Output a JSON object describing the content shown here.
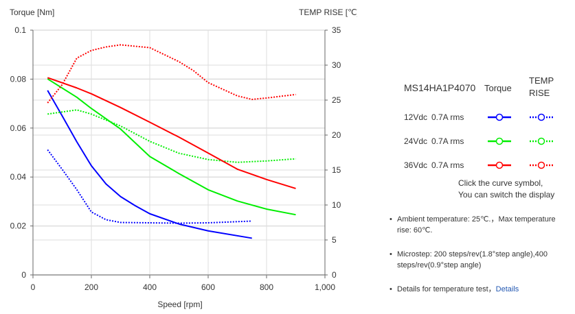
{
  "chart_data": {
    "type": "line",
    "xlabel": "Speed [rpm]",
    "ylabel": "Torque  [Nm]",
    "y2label": "TEMP RISE [℃]",
    "xlim": [
      0,
      1000
    ],
    "ylim": [
      0,
      0.1
    ],
    "y2lim": [
      0,
      35
    ],
    "xticks": [
      "0",
      "200",
      "400",
      "600",
      "800",
      "1,000"
    ],
    "yticks": [
      "0",
      "0.02",
      "0.04",
      "0.06",
      "0.08",
      "0.1"
    ],
    "y2ticks": [
      "0",
      "5",
      "10",
      "15",
      "20",
      "25",
      "30",
      "35"
    ],
    "grid": true,
    "series": [
      {
        "axis": "left",
        "style": "solid",
        "color": "#0000ff",
        "x": [
          50,
          100,
          150,
          200,
          250,
          300,
          350,
          400,
          500,
          600,
          750
        ],
        "y": [
          0.0754,
          0.065,
          0.0544,
          0.0446,
          0.0372,
          0.032,
          0.0283,
          0.025,
          0.0208,
          0.018,
          0.015
        ]
      },
      {
        "axis": "right",
        "style": "dotted",
        "color": "#0000ff",
        "x": [
          50,
          100,
          150,
          200,
          250,
          300,
          400,
          500,
          600,
          750
        ],
        "y": [
          17.9,
          15.1,
          12.2,
          9.0,
          7.9,
          7.5,
          7.45,
          7.4,
          7.45,
          7.7
        ]
      },
      {
        "axis": "left",
        "style": "solid",
        "color": "#00ee00",
        "x": [
          50,
          150,
          200,
          300,
          400,
          500,
          600,
          700,
          800,
          900
        ],
        "y": [
          0.0801,
          0.0726,
          0.068,
          0.0596,
          0.0484,
          0.0414,
          0.0348,
          0.0302,
          0.0269,
          0.0246
        ]
      },
      {
        "axis": "right",
        "style": "dotted",
        "color": "#00ee00",
        "x": [
          50,
          150,
          200,
          300,
          400,
          500,
          600,
          700,
          800,
          900
        ],
        "y": [
          23.0,
          23.6,
          23.0,
          21.3,
          19.1,
          17.4,
          16.5,
          16.1,
          16.3,
          16.6
        ]
      },
      {
        "axis": "left",
        "style": "solid",
        "color": "#ff0000",
        "x": [
          50,
          150,
          200,
          300,
          400,
          500,
          600,
          700,
          800,
          900
        ],
        "y": [
          0.0806,
          0.0764,
          0.074,
          0.0684,
          0.0624,
          0.0563,
          0.0498,
          0.0432,
          0.039,
          0.0353
        ]
      },
      {
        "axis": "right",
        "style": "dotted",
        "color": "#ff0000",
        "x": [
          50,
          100,
          150,
          200,
          250,
          300,
          400,
          500,
          550,
          600,
          700,
          750,
          800,
          900
        ],
        "y": [
          24.6,
          27.2,
          31.0,
          32.1,
          32.6,
          32.9,
          32.5,
          30.5,
          29.2,
          27.5,
          25.6,
          25.1,
          25.3,
          25.8
        ]
      }
    ]
  },
  "legend": {
    "model": "MS14HA1P4070",
    "col_torque": "Torque",
    "col_temp_line1": "TEMP",
    "col_temp_line2": "RISE",
    "rows": [
      {
        "voltage": "12Vdc",
        "current": "0.7A rms",
        "color": "#0000ff"
      },
      {
        "voltage": "24Vdc",
        "current": "0.7A rms",
        "color": "#00ee00"
      },
      {
        "voltage": "36Vdc",
        "current": "0.7A rms",
        "color": "#ff0000"
      }
    ],
    "hint_line1": "Click the curve symbol,",
    "hint_line2": "You can switch the display"
  },
  "notes": {
    "ambient": "Ambient temperature: 25℃.，Max temperature rise: 60℃.",
    "microstep": "Microstep: 200 steps/rev(1.8°step angle),400 steps/rev(0.9°step angle)",
    "details_text": "Details for temperature test，",
    "details_link": "Details"
  }
}
